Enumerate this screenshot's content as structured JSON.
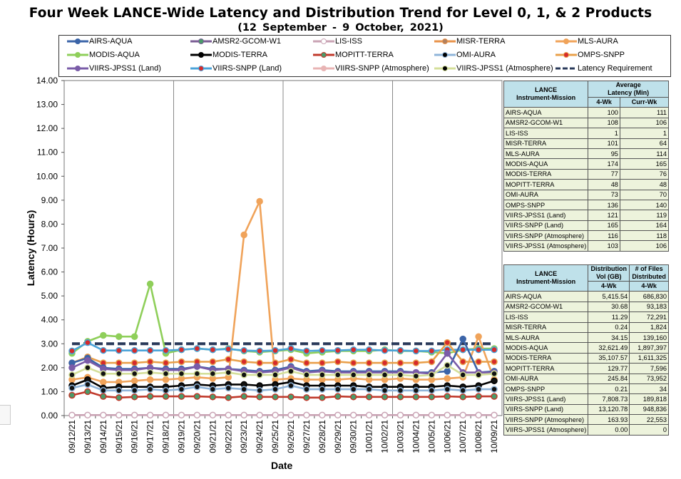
{
  "title": "Four Week LANCE-Wide Latency and Distribution Trend for Level 0, 1, & 2 Products",
  "subtitle": "(12 September   - 9 October, 2021)",
  "legend": [
    {
      "name": "AIRS-AQUA",
      "color": "#3b64a8",
      "marker": "diamond"
    },
    {
      "name": "AMSR2-GCOM-W1",
      "color": "#7a5c94",
      "marker": "circle-green"
    },
    {
      "name": "LIS-ISS",
      "color": "#c9a3b4",
      "marker": "circle-open"
    },
    {
      "name": "MISR-TERRA",
      "color": "#e8934a",
      "marker": "circle-brown"
    },
    {
      "name": "MLS-AURA",
      "color": "#f0a35a",
      "marker": "circle"
    },
    {
      "name": "MODIS-AQUA",
      "color": "#8fcf5a",
      "marker": "circle"
    },
    {
      "name": "MODIS-TERRA",
      "color": "#000000",
      "marker": "x"
    },
    {
      "name": "MOPITT-TERRA",
      "color": "#c0392b",
      "marker": "circle-green"
    },
    {
      "name": "OMI-AURA",
      "color": "#8fb4d9",
      "marker": "diamond-black"
    },
    {
      "name": "OMPS-SNPP",
      "color": "#e9a04a",
      "marker": "circle-red"
    },
    {
      "name": "VIIRS-JPSS1 (Land)",
      "color": "#7a5ca8",
      "marker": "diamond"
    },
    {
      "name": "VIIRS-SNPP (Land)",
      "color": "#4aa3d9",
      "marker": "square-red"
    },
    {
      "name": "VIIRS-SNPP (Atmosphere)",
      "color": "#e8b4b4",
      "marker": "square"
    },
    {
      "name": "VIIRS-JPSS1 (Atmosphere)",
      "color": "#d4df9a",
      "marker": "circle-black"
    },
    {
      "name": "Latency Requirement",
      "color": "#2a3a5a",
      "marker": "dash"
    }
  ],
  "chart_data": {
    "type": "line",
    "title": "Four Week LANCE-Wide Latency and Distribution Trend for Level 0, 1, & 2 Products",
    "xlabel": "Date",
    "ylabel": "Latency (Hours)",
    "ylim": [
      0,
      14
    ],
    "yticks": [
      "0.00",
      "1.00",
      "2.00",
      "3.00",
      "4.00",
      "5.00",
      "6.00",
      "7.00",
      "8.00",
      "9.00",
      "10.00",
      "11.00",
      "12.00",
      "13.00",
      "14.00"
    ],
    "categories": [
      "09/12/21",
      "09/13/21",
      "09/14/21",
      "09/15/21",
      "09/16/21",
      "09/17/21",
      "09/18/21",
      "09/19/21",
      "09/20/21",
      "09/21/21",
      "09/22/21",
      "09/23/21",
      "09/24/21",
      "09/25/21",
      "09/26/21",
      "09/27/21",
      "09/28/21",
      "09/29/21",
      "09/30/21",
      "10/01/21",
      "10/02/21",
      "10/03/21",
      "10/04/21",
      "10/05/21",
      "10/06/21",
      "10/07/21",
      "10/08/21",
      "10/09/21"
    ],
    "grid": "vertical-weekly",
    "series": [
      {
        "name": "Latency Requirement",
        "values": [
          3,
          3,
          3,
          3,
          3,
          3,
          3,
          3,
          3,
          3,
          3,
          3,
          3,
          3,
          3,
          3,
          3,
          3,
          3,
          3,
          3,
          3,
          3,
          3,
          3,
          3,
          3,
          3
        ]
      },
      {
        "name": "MODIS-AQUA",
        "values": [
          2.6,
          3.1,
          3.35,
          3.3,
          3.3,
          5.5,
          2.6,
          2.75,
          2.8,
          2.75,
          2.8,
          2.7,
          2.65,
          2.7,
          2.75,
          2.6,
          2.65,
          2.7,
          2.7,
          2.7,
          2.75,
          2.7,
          2.7,
          2.65,
          2.6,
          2.75,
          2.8,
          2.8
        ]
      },
      {
        "name": "MLS-AURA",
        "values": [
          1.5,
          1.6,
          1.4,
          1.4,
          1.45,
          1.5,
          1.5,
          1.55,
          1.6,
          1.55,
          1.6,
          7.55,
          8.95,
          1.5,
          1.55,
          1.5,
          1.5,
          1.5,
          1.55,
          1.5,
          1.5,
          1.55,
          1.5,
          1.5,
          1.55,
          1.6,
          3.3,
          1.5
        ]
      },
      {
        "name": "VIIRS-SNPP (Land)",
        "values": [
          2.7,
          3.05,
          2.72,
          2.72,
          2.72,
          2.72,
          2.72,
          2.75,
          2.8,
          2.75,
          2.78,
          2.72,
          2.7,
          2.72,
          2.8,
          2.7,
          2.72,
          2.72,
          2.75,
          2.75,
          2.72,
          2.72,
          2.7,
          2.7,
          2.75,
          2.75,
          2.75,
          2.75
        ]
      },
      {
        "name": "OMPS-SNPP",
        "values": [
          2.2,
          2.45,
          2.2,
          2.2,
          2.2,
          2.25,
          2.2,
          2.25,
          2.25,
          2.25,
          2.35,
          2.25,
          2.2,
          2.2,
          2.35,
          2.2,
          2.2,
          2.25,
          2.2,
          2.2,
          2.2,
          2.2,
          2.2,
          2.25,
          3.05,
          2.25,
          2.25,
          2.25
        ]
      },
      {
        "name": "AIRS-AQUA",
        "values": [
          2.2,
          2.4,
          2.0,
          1.95,
          1.95,
          2.0,
          1.95,
          1.95,
          2.05,
          1.95,
          1.95,
          1.9,
          1.85,
          1.9,
          2.05,
          1.85,
          1.9,
          1.85,
          1.85,
          1.85,
          1.85,
          1.85,
          1.8,
          1.8,
          1.85,
          3.2,
          1.8,
          1.85
        ]
      },
      {
        "name": "VIIRS-JPSS1 (Land)",
        "values": [
          2.0,
          2.3,
          1.95,
          1.9,
          1.9,
          2.0,
          1.9,
          1.9,
          2.05,
          1.9,
          1.95,
          1.85,
          1.8,
          1.85,
          2.0,
          1.8,
          1.85,
          1.8,
          1.8,
          1.8,
          1.8,
          1.8,
          1.8,
          1.75,
          2.6,
          1.8,
          1.8,
          1.8
        ]
      },
      {
        "name": "VIIRS-JPSS1 (Atmosphere)",
        "values": [
          1.7,
          2.0,
          1.75,
          1.75,
          1.75,
          1.8,
          1.75,
          1.75,
          1.75,
          1.75,
          1.8,
          1.7,
          1.7,
          1.7,
          1.85,
          1.7,
          1.7,
          1.7,
          1.7,
          1.7,
          1.7,
          1.7,
          1.65,
          1.7,
          2.1,
          1.7,
          1.7,
          1.75
        ]
      },
      {
        "name": "MODIS-TERRA",
        "values": [
          1.25,
          1.5,
          1.15,
          1.2,
          1.2,
          1.2,
          1.2,
          1.25,
          1.3,
          1.25,
          1.3,
          1.3,
          1.25,
          1.3,
          1.4,
          1.25,
          1.25,
          1.25,
          1.25,
          1.2,
          1.2,
          1.2,
          1.2,
          1.2,
          1.25,
          1.2,
          1.25,
          1.45
        ]
      },
      {
        "name": "OMI-AURA",
        "values": [
          1.15,
          1.3,
          1.05,
          1.05,
          1.05,
          1.1,
          1.05,
          1.1,
          1.2,
          1.1,
          1.15,
          1.1,
          1.05,
          1.1,
          1.25,
          1.1,
          1.1,
          1.1,
          1.1,
          1.1,
          1.05,
          1.05,
          1.05,
          1.05,
          1.1,
          1.05,
          1.1,
          1.1
        ]
      },
      {
        "name": "MOPITT-TERRA",
        "values": [
          0.85,
          1.0,
          0.8,
          0.75,
          0.78,
          0.8,
          0.8,
          0.8,
          0.8,
          0.78,
          0.75,
          0.8,
          0.78,
          0.78,
          0.78,
          0.75,
          0.75,
          0.8,
          0.78,
          0.78,
          0.78,
          0.78,
          0.78,
          0.78,
          0.8,
          0.78,
          0.8,
          0.8
        ]
      },
      {
        "name": "LIS-ISS",
        "values": [
          0.02,
          0.02,
          0.02,
          0.02,
          0.02,
          0.02,
          0.02,
          0.02,
          0.02,
          0.02,
          0.02,
          0.02,
          0.02,
          0.02,
          0.02,
          0.02,
          0.02,
          0.02,
          0.02,
          0.02,
          0.02,
          0.02,
          0.02,
          0.02,
          0.02,
          0.02,
          0.02,
          0.02
        ]
      }
    ]
  },
  "latency_table": {
    "header_col1": "LANCE\nInstrument-Mission",
    "header_col2": "Average\nLatency (Min)",
    "sub_4wk": "4-Wk",
    "sub_curr": "Curr-Wk",
    "rows": [
      [
        "AIRS-AQUA",
        "100",
        "111"
      ],
      [
        "AMSR2-GCOM-W1",
        "108",
        "106"
      ],
      [
        "LIS-ISS",
        "1",
        "1"
      ],
      [
        "MISR-TERRA",
        "101",
        "64"
      ],
      [
        "MLS-AURA",
        "95",
        "114"
      ],
      [
        "MODIS-AQUA",
        "174",
        "165"
      ],
      [
        "MODIS-TERRA",
        "77",
        "76"
      ],
      [
        "MOPITT-TERRA",
        "48",
        "48"
      ],
      [
        "OMI-AURA",
        "73",
        "70"
      ],
      [
        "OMPS-SNPP",
        "136",
        "140"
      ],
      [
        "VIIRS-JPSS1 (Land)",
        "121",
        "119"
      ],
      [
        "VIIRS-SNPP (Land)",
        "165",
        "164"
      ],
      [
        "VIIRS-SNPP (Atmosphere)",
        "116",
        "118"
      ],
      [
        "VIIRS-JPSS1 (Atmosphere)",
        "103",
        "106"
      ]
    ]
  },
  "distribution_table": {
    "header_col1": "LANCE\nInstrument-Mission",
    "header_col2": "Distribution\nVol (GB)",
    "header_col3": "# of Files\nDistributed",
    "sub_a": "4-Wk",
    "sub_b": "4-Wk",
    "rows": [
      [
        "AIRS-AQUA",
        "5,415.54",
        "686,830"
      ],
      [
        "AMSR2-GCOM-W1",
        "30.68",
        "93,183"
      ],
      [
        "LIS-ISS",
        "11.29",
        "72,291"
      ],
      [
        "MISR-TERRA",
        "0.24",
        "1,824"
      ],
      [
        "MLS-AURA",
        "34.15",
        "139,160"
      ],
      [
        "MODIS-AQUA",
        "32,621.49",
        "1,897,397"
      ],
      [
        "MODIS-TERRA",
        "35,107.57",
        "1,611,325"
      ],
      [
        "MOPITT-TERRA",
        "129.77",
        "7,596"
      ],
      [
        "OMI-AURA",
        "245.84",
        "73,952"
      ],
      [
        "OMPS-SNPP",
        "0.21",
        "34"
      ],
      [
        "VIIRS-JPSS1 (Land)",
        "7,808.73",
        "189,818"
      ],
      [
        "VIIRS-SNPP (Land)",
        "13,120.78",
        "948,836"
      ],
      [
        "VIIRS-SNPP (Atmosphere)",
        "163.93",
        "22,553"
      ],
      [
        "VIIRS-JPSS1 (Atmosphere)",
        "0.00",
        "0"
      ]
    ]
  }
}
